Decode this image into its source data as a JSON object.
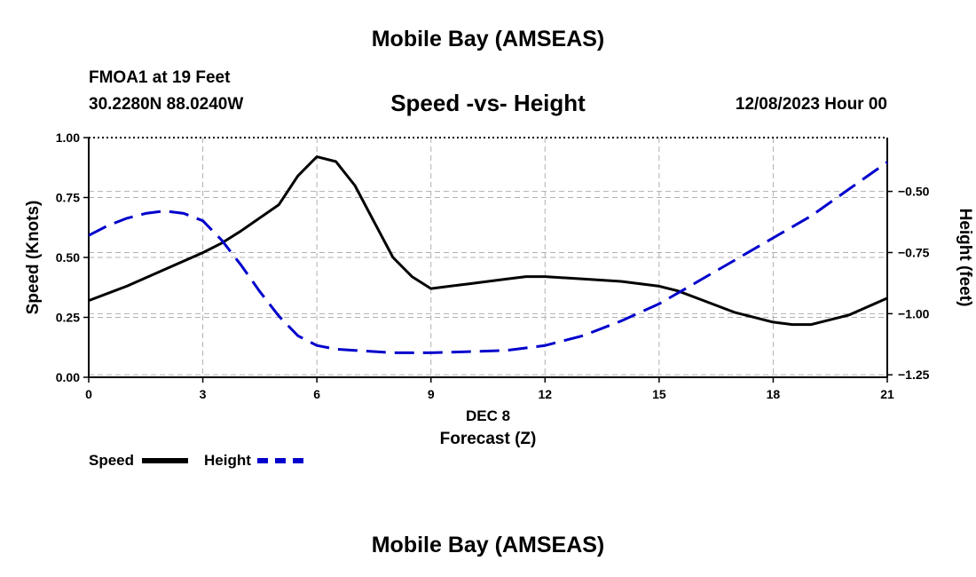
{
  "header": {
    "title": "Mobile Bay (AMSEAS)",
    "station": "FMOA1 at 19 Feet",
    "coords": "30.2280N  88.0240W",
    "subtitle": "Speed -vs- Height",
    "datetime": "12/08/2023 Hour 00"
  },
  "footer": {
    "title": "Mobile Bay (AMSEAS)"
  },
  "legend": {
    "items": [
      {
        "label": "Speed",
        "color": "#000000",
        "style": "solid"
      },
      {
        "label": "Height",
        "color": "#0000cc",
        "style": "dashed"
      }
    ]
  },
  "chart_data": {
    "type": "line",
    "xlabel_top": "DEC 8",
    "xlabel": "Forecast (Z)",
    "ylabel": "Speed (Knots)",
    "y2label": "Height (feet)",
    "xlim": [
      0,
      21
    ],
    "ylim": [
      0,
      1
    ],
    "y2lim": [
      -1.26,
      -0.28
    ],
    "x_ticks": [
      "0",
      "3",
      "6",
      "9",
      "12",
      "15",
      "18",
      "21"
    ],
    "y_ticks": [
      "0.00",
      "0.25",
      "0.50",
      "0.75",
      "1.00"
    ],
    "y2_ticks": [
      "-1.25",
      "-1.00",
      "-0.75",
      "-0.50"
    ],
    "grid": true,
    "legend_position": "bottom-left",
    "series": [
      {
        "name": "Speed",
        "axis": "left",
        "color": "#000000",
        "style": "solid",
        "x": [
          0,
          1,
          2,
          3,
          3.5,
          4,
          5,
          5.5,
          6,
          6.5,
          7,
          7.5,
          8,
          8.5,
          9,
          10,
          11,
          11.5,
          12,
          13,
          14,
          15,
          15.5,
          16,
          17,
          18,
          18.5,
          19,
          20,
          21
        ],
        "y": [
          0.32,
          0.38,
          0.45,
          0.52,
          0.56,
          0.61,
          0.72,
          0.84,
          0.92,
          0.9,
          0.8,
          0.65,
          0.5,
          0.42,
          0.37,
          0.39,
          0.41,
          0.42,
          0.42,
          0.41,
          0.4,
          0.38,
          0.36,
          0.33,
          0.27,
          0.23,
          0.22,
          0.22,
          0.26,
          0.33
        ]
      },
      {
        "name": "Height",
        "axis": "right",
        "color": "#0000cc",
        "style": "dashed",
        "x": [
          0,
          0.5,
          1,
          1.5,
          2,
          2.5,
          3,
          3.5,
          4,
          4.5,
          5,
          5.5,
          6,
          6.5,
          7,
          8,
          9,
          10,
          11,
          12,
          13,
          14,
          15,
          16,
          17,
          18,
          19,
          20,
          21
        ],
        "y": [
          -0.68,
          -0.64,
          -0.61,
          -0.59,
          -0.58,
          -0.59,
          -0.62,
          -0.7,
          -0.8,
          -0.91,
          -1.01,
          -1.09,
          -1.13,
          -1.145,
          -1.15,
          -1.16,
          -1.16,
          -1.155,
          -1.15,
          -1.13,
          -1.09,
          -1.03,
          -0.96,
          -0.87,
          -0.78,
          -0.69,
          -0.6,
          -0.49,
          -0.38
        ]
      }
    ]
  }
}
